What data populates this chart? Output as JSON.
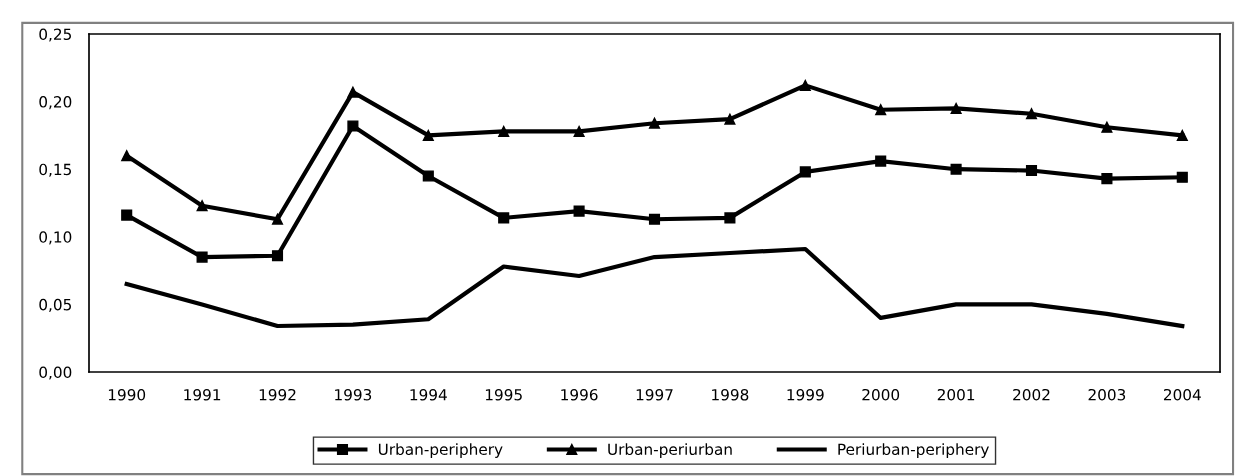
{
  "chart_data": {
    "type": "line",
    "categories": [
      "1990",
      "1991",
      "1992",
      "1993",
      "1994",
      "1995",
      "1996",
      "1997",
      "1998",
      "1999",
      "2000",
      "2001",
      "2002",
      "2003",
      "2004"
    ],
    "ylim": [
      0,
      0.25
    ],
    "yticks": [
      {
        "value": 0,
        "label": "0,00"
      },
      {
        "value": 0.05,
        "label": "0,05"
      },
      {
        "value": 0.1,
        "label": "0,10"
      },
      {
        "value": 0.15,
        "label": "0,15"
      },
      {
        "value": 0.2,
        "label": "0,20"
      },
      {
        "value": 0.25,
        "label": "0,25"
      }
    ],
    "grid": false,
    "legend": "bottom",
    "series": [
      {
        "name": "Urban-periphery",
        "color": "#000000",
        "marker": "square",
        "values": [
          0.116,
          0.085,
          0.086,
          0.182,
          0.145,
          0.114,
          0.119,
          0.113,
          0.114,
          0.148,
          0.156,
          0.15,
          0.149,
          0.143,
          0.144
        ]
      },
      {
        "name": "Urban-periurban",
        "color": "#000000",
        "marker": "triangle",
        "values": [
          0.16,
          0.123,
          0.113,
          0.207,
          0.175,
          0.178,
          0.178,
          0.184,
          0.187,
          0.212,
          0.194,
          0.195,
          0.191,
          0.181,
          0.175
        ]
      },
      {
        "name": "Periurban-periphery",
        "color": "#000000",
        "marker": "none",
        "values": [
          0.065,
          0.05,
          0.034,
          0.035,
          0.039,
          0.078,
          0.071,
          0.085,
          0.088,
          0.091,
          0.04,
          0.05,
          0.05,
          0.043,
          0.034
        ]
      }
    ]
  }
}
